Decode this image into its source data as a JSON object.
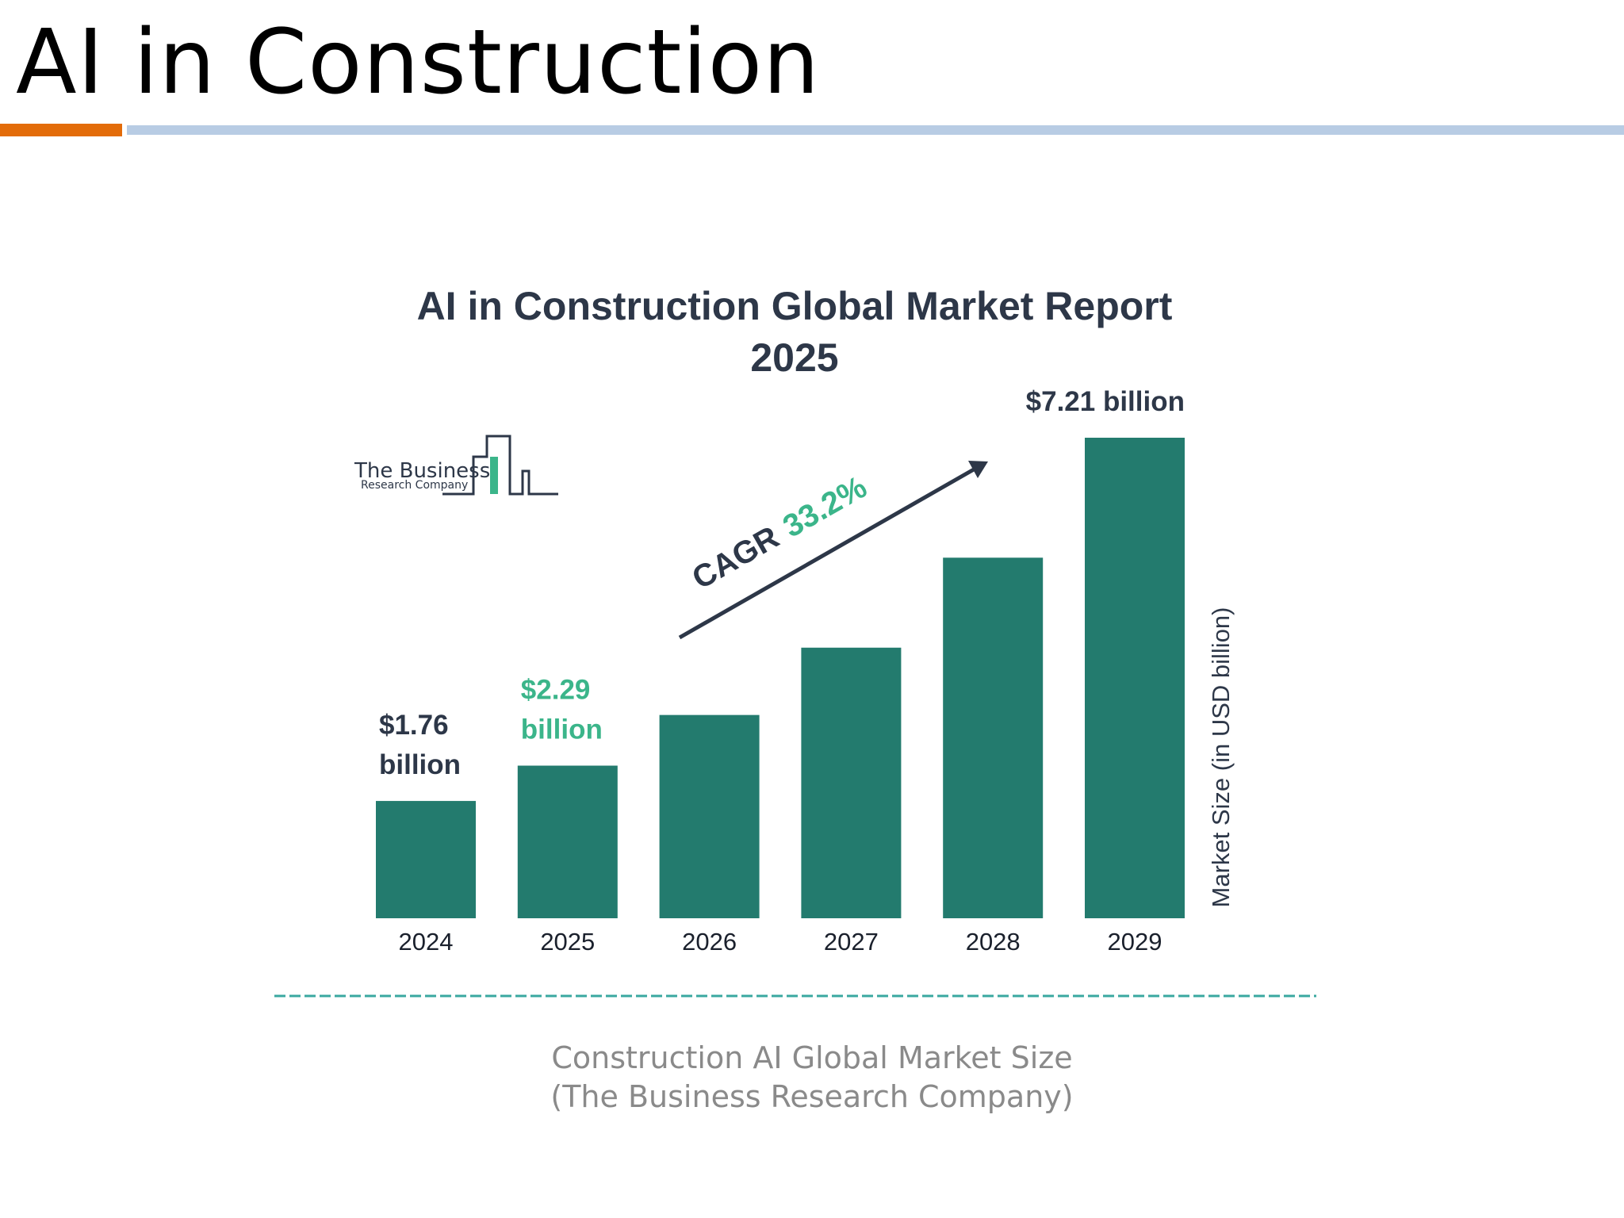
{
  "slide": {
    "title": "AI in Construction",
    "accent_color": "#e36c09",
    "rule_color": "#b8cce4"
  },
  "logo": {
    "line1": "The Business",
    "line2": "Research Company"
  },
  "chart_data": {
    "type": "bar",
    "title_lines": [
      "AI in Construction Global Market Report",
      "2025"
    ],
    "categories": [
      "2024",
      "2025",
      "2026",
      "2027",
      "2028",
      "2029"
    ],
    "values": [
      1.76,
      2.29,
      3.05,
      4.06,
      5.41,
      7.21
    ],
    "ylabel": "Market Size (in USD billion)",
    "ylim": [
      0,
      7.21
    ],
    "bar_color": "#237b6e",
    "grid": false,
    "annotations": [
      {
        "index": 0,
        "lines": [
          "$1.76",
          "billion"
        ],
        "color": "#2d3748"
      },
      {
        "index": 1,
        "lines": [
          "$2.29",
          "billion"
        ],
        "color": "#3bb58a"
      },
      {
        "index": 5,
        "lines": [
          "$7.21 billion"
        ],
        "color": "#2d3748"
      }
    ],
    "cagr": {
      "label": "CAGR",
      "value": "33.2%",
      "label_color": "#2d3748",
      "value_color": "#3bb58a"
    }
  },
  "divider_color": "#3aa8a0",
  "caption": {
    "line1": "Construction AI Global Market Size",
    "line2": "(The Business Research Company)"
  }
}
